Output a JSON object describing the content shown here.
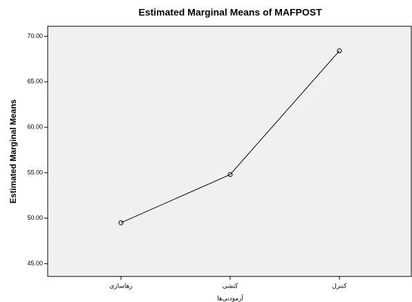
{
  "chart_data": {
    "type": "line",
    "title": "Estimated Marginal Means of MAFPOST",
    "y_label": "Estimated Marginal Means",
    "x_label": "آزمودنی‌ها",
    "categories": [
      "رهاسازی",
      "کنشی",
      "کنترل"
    ],
    "series": [
      {
        "name": "MAFPOST",
        "color": "#000000",
        "values": [
          49.5,
          54.8,
          68.4
        ]
      }
    ],
    "ylim": [
      43.6,
      71.1
    ],
    "yticks": [
      {
        "value": 45,
        "label": "45.00"
      },
      {
        "value": 50,
        "label": "50.00"
      },
      {
        "value": 55,
        "label": "55.00"
      },
      {
        "value": 60,
        "label": "60.00"
      },
      {
        "value": 65,
        "label": "65.00"
      },
      {
        "value": 70,
        "label": "70.00"
      }
    ],
    "grid": false
  }
}
